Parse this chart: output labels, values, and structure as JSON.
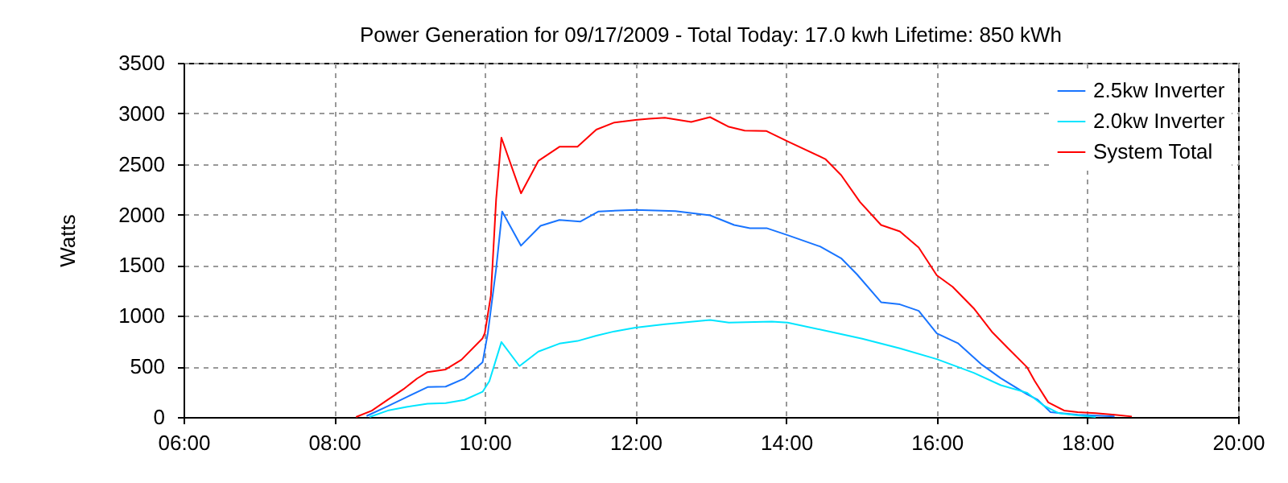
{
  "chart_data": {
    "type": "line",
    "title": "Power Generation for 09/17/2009 - Total Today: 17.0 kwh   Lifetime: 850 kWh",
    "ylabel": "Watts",
    "xlim": [
      6,
      20
    ],
    "xticks": [
      {
        "value": 6,
        "label": "06:00"
      },
      {
        "value": 8,
        "label": "08:00"
      },
      {
        "value": 10,
        "label": "10:00"
      },
      {
        "value": 12,
        "label": "12:00"
      },
      {
        "value": 14,
        "label": "14:00"
      },
      {
        "value": 16,
        "label": "16:00"
      },
      {
        "value": 18,
        "label": "18:00"
      },
      {
        "value": 20,
        "label": "20:00"
      }
    ],
    "ylim": [
      0,
      3500
    ],
    "yticks": [
      0,
      500,
      1000,
      1500,
      2000,
      2500,
      3000,
      3500
    ],
    "grid": true,
    "legend": "top right",
    "marker": "none",
    "line_style": "solid",
    "series": [
      {
        "name": "2.5kw Inverter",
        "color": "#1874ff",
        "x": [
          8.43,
          8.71,
          8.96,
          9.24,
          9.48,
          9.73,
          9.97,
          10.04,
          10.15,
          10.23,
          10.48,
          10.74,
          10.99,
          11.27,
          11.51,
          12.0,
          12.53,
          12.99,
          13.31,
          13.52,
          13.74,
          14.02,
          14.45,
          14.73,
          14.94,
          15.26,
          15.51,
          15.76,
          16.0,
          16.28,
          16.6,
          16.85,
          17.2,
          17.34,
          17.51,
          17.87,
          18.36
        ],
        "values": [
          10,
          106,
          196,
          296,
          300,
          381,
          540,
          830,
          1465,
          2031,
          1693,
          1889,
          1947,
          1931,
          2031,
          2047,
          2035,
          1993,
          1897,
          1866,
          1866,
          1797,
          1685,
          1569,
          1410,
          1134,
          1113,
          1049,
          827,
          729,
          516,
          383,
          223,
          170,
          48,
          21,
          5
        ]
      },
      {
        "name": "2.0kw Inverter",
        "color": "#00e5ff",
        "x": [
          8.47,
          8.71,
          8.96,
          9.24,
          9.48,
          9.73,
          9.97,
          10.06,
          10.22,
          10.46,
          10.71,
          10.99,
          11.23,
          11.48,
          11.72,
          12.0,
          12.39,
          12.99,
          13.24,
          13.81,
          14.02,
          14.52,
          15.01,
          15.51,
          16.0,
          16.49,
          16.85,
          17.2,
          17.41,
          17.62,
          17.87,
          18.11
        ],
        "values": [
          0,
          63,
          100,
          132,
          138,
          169,
          249,
          354,
          741,
          503,
          646,
          725,
          751,
          804,
          846,
          883,
          917,
          959,
          933,
          943,
          933,
          853,
          774,
          678,
          572,
          436,
          314,
          239,
          117,
          37,
          16,
          0
        ]
      },
      {
        "name": "System Total",
        "color": "#ff0000",
        "x": [
          8.29,
          8.5,
          8.71,
          8.92,
          9.1,
          9.24,
          9.48,
          9.69,
          9.97,
          10.0,
          10.08,
          10.15,
          10.22,
          10.48,
          10.71,
          10.99,
          11.23,
          11.48,
          11.72,
          12.0,
          12.18,
          12.39,
          12.74,
          12.99,
          13.24,
          13.45,
          13.74,
          14.02,
          14.52,
          14.73,
          14.98,
          15.26,
          15.51,
          15.76,
          16.0,
          16.21,
          16.49,
          16.74,
          16.95,
          17.2,
          17.3,
          17.48,
          17.69,
          17.87,
          18.11,
          18.36,
          18.59
        ],
        "values": [
          0,
          63,
          170,
          275,
          380,
          444,
          470,
          566,
          778,
          830,
          1200,
          2150,
          2760,
          2210,
          2530,
          2670,
          2670,
          2840,
          2910,
          2936,
          2947,
          2957,
          2915,
          2963,
          2867,
          2830,
          2825,
          2724,
          2549,
          2390,
          2125,
          1897,
          1834,
          1675,
          1400,
          1287,
          1074,
          835,
          676,
          490,
          356,
          144,
          64,
          48,
          37,
          21,
          5
        ]
      }
    ]
  }
}
